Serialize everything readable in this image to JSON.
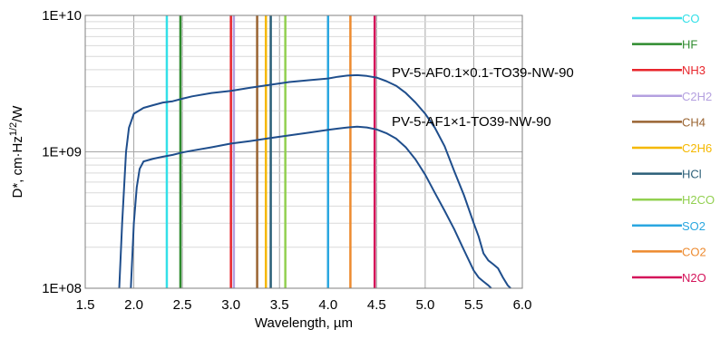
{
  "chart_data": {
    "type": "line",
    "title": "",
    "xlabel": "Wavelength, µm",
    "ylabel": "D*, cm·Hz",
    "ylabel_sup": "1/2",
    "ylabel_suffix": "/W",
    "xlim": [
      1.5,
      6.0
    ],
    "ylim": [
      100000000,
      10000000000
    ],
    "yscale": "log",
    "grid": true,
    "x_ticks": [
      "1.5",
      "2.0",
      "2.5",
      "3.0",
      "3.5",
      "4.0",
      "4.5",
      "5.0",
      "5.5",
      "6.0"
    ],
    "x_tick_values": [
      1.5,
      2.0,
      2.5,
      3.0,
      3.5,
      4.0,
      4.5,
      5.0,
      5.5,
      6.0
    ],
    "y_ticks": [
      "1E+08",
      "1E+09",
      "1E+10"
    ],
    "y_tick_values": [
      100000000,
      1000000000,
      10000000000
    ],
    "series": [
      {
        "name": "PV-5-AF0.1×0.1-TO39-NW-90",
        "color": "#1f4e8c",
        "x": [
          1.85,
          1.88,
          1.92,
          1.95,
          2.0,
          2.1,
          2.2,
          2.3,
          2.4,
          2.5,
          2.6,
          2.8,
          3.0,
          3.2,
          3.4,
          3.6,
          3.8,
          4.0,
          4.1,
          4.2,
          4.3,
          4.4,
          4.5,
          4.6,
          4.7,
          4.8,
          4.9,
          5.0,
          5.1,
          5.2,
          5.3,
          5.4,
          5.5,
          5.55,
          5.6,
          5.65,
          5.7,
          5.75,
          5.8,
          5.85,
          5.88
        ],
        "y": [
          100000000,
          300000000,
          1000000000,
          1500000000,
          1900000000,
          2100000000,
          2200000000,
          2300000000,
          2350000000,
          2450000000,
          2550000000,
          2700000000,
          2800000000,
          2950000000,
          3100000000,
          3250000000,
          3350000000,
          3450000000,
          3550000000,
          3620000000,
          3650000000,
          3600000000,
          3500000000,
          3300000000,
          3050000000,
          2700000000,
          2300000000,
          1900000000,
          1500000000,
          1100000000,
          720000000,
          480000000,
          300000000,
          240000000,
          180000000,
          160000000,
          150000000,
          140000000,
          120000000,
          105000000,
          100000000
        ]
      },
      {
        "name": "PV-5-AF1×1-TO39-NW-90",
        "color": "#1f4e8c",
        "x": [
          1.97,
          2.0,
          2.03,
          2.06,
          2.1,
          2.2,
          2.3,
          2.4,
          2.5,
          2.6,
          2.8,
          3.0,
          3.2,
          3.4,
          3.6,
          3.8,
          4.0,
          4.1,
          4.2,
          4.3,
          4.4,
          4.5,
          4.6,
          4.7,
          4.8,
          4.9,
          5.0,
          5.1,
          5.2,
          5.3,
          5.4,
          5.45,
          5.5,
          5.55,
          5.6,
          5.65,
          5.68
        ],
        "y": [
          100000000,
          300000000,
          550000000,
          750000000,
          850000000,
          890000000,
          920000000,
          950000000,
          990000000,
          1020000000,
          1080000000,
          1150000000,
          1200000000,
          1260000000,
          1320000000,
          1380000000,
          1450000000,
          1480000000,
          1510000000,
          1530000000,
          1510000000,
          1460000000,
          1370000000,
          1250000000,
          1080000000,
          880000000,
          680000000,
          500000000,
          370000000,
          270000000,
          190000000,
          160000000,
          135000000,
          120000000,
          112000000,
          105000000,
          100000000
        ]
      }
    ],
    "gas_lines": [
      {
        "name": "CO",
        "x": 2.34,
        "color": "#33e0e8"
      },
      {
        "name": "HF",
        "x": 2.48,
        "color": "#2e8b2e"
      },
      {
        "name": "NH3",
        "x": 3.0,
        "color": "#e8262c"
      },
      {
        "name": "C2H2",
        "x": 3.03,
        "color": "#b4a0e0"
      },
      {
        "name": "CH4",
        "x": 3.27,
        "color": "#9a6432"
      },
      {
        "name": "C2H6",
        "x": 3.36,
        "color": "#f5b800"
      },
      {
        "name": "HCl",
        "x": 3.41,
        "color": "#2b5f78"
      },
      {
        "name": "H2CO",
        "x": 3.56,
        "color": "#92d050"
      },
      {
        "name": "SO2",
        "x": 4.0,
        "color": "#2aa7e0"
      },
      {
        "name": "CO2",
        "x": 4.23,
        "color": "#ed8a2f"
      },
      {
        "name": "N2O",
        "x": 4.48,
        "color": "#d4145a"
      }
    ]
  }
}
